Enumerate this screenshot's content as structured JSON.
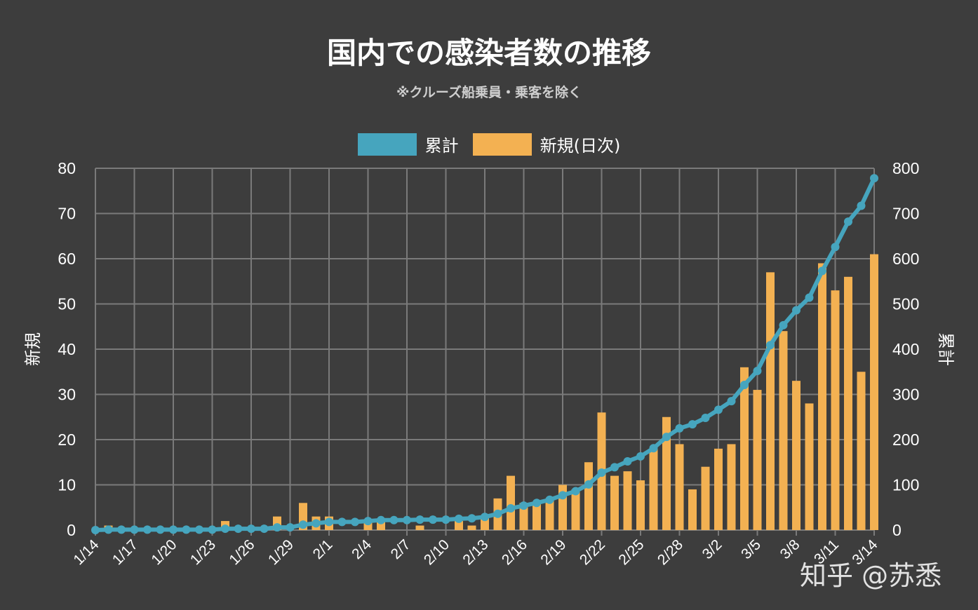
{
  "chart_data": {
    "type": "bar+line",
    "title": "国内での感染者数の推移",
    "subtitle": "※クルーズ船乗員・乗客を除く",
    "legend": {
      "placement": "top",
      "entries": [
        "累計",
        "新規(日次)"
      ]
    },
    "left_axis": {
      "label": "新規",
      "ylim": [
        0,
        80
      ],
      "ticks": [
        0,
        10,
        20,
        30,
        40,
        50,
        60,
        70,
        80
      ]
    },
    "right_axis": {
      "label": "累計",
      "ylim": [
        0,
        800
      ],
      "ticks": [
        0,
        100,
        200,
        300,
        400,
        500,
        600,
        700,
        800
      ]
    },
    "grid": true,
    "x_tick_labels": [
      "1/14",
      "1/17",
      "1/20",
      "1/23",
      "1/26",
      "1/29",
      "2/1",
      "2/4",
      "2/7",
      "2/10",
      "2/13",
      "2/16",
      "2/19",
      "2/22",
      "2/25",
      "2/28",
      "3/2",
      "3/5",
      "3/8",
      "3/11",
      "3/14"
    ],
    "x": [
      "1/14",
      "1/15",
      "1/16",
      "1/17",
      "1/18",
      "1/19",
      "1/20",
      "1/21",
      "1/22",
      "1/23",
      "1/24",
      "1/25",
      "1/26",
      "1/27",
      "1/28",
      "1/29",
      "1/30",
      "1/31",
      "2/1",
      "2/2",
      "2/3",
      "2/4",
      "2/5",
      "2/6",
      "2/7",
      "2/8",
      "2/9",
      "2/10",
      "2/11",
      "2/12",
      "2/13",
      "2/14",
      "2/15",
      "2/16",
      "2/17",
      "2/18",
      "2/19",
      "2/20",
      "2/21",
      "2/22",
      "2/23",
      "2/24",
      "2/25",
      "2/26",
      "2/27",
      "2/28",
      "2/29",
      "3/1",
      "3/2",
      "3/3",
      "3/4",
      "3/5",
      "3/6",
      "3/7",
      "3/8",
      "3/9",
      "3/10",
      "3/11",
      "3/12",
      "3/13",
      "3/14"
    ],
    "series": [
      {
        "name": "累計",
        "type": "line",
        "axis": "right",
        "color": "#46a5be",
        "values": [
          0,
          1,
          1,
          1,
          1,
          1,
          1,
          1,
          1,
          1,
          3,
          3,
          3,
          3,
          6,
          6,
          12,
          15,
          18,
          18,
          18,
          20,
          22,
          22,
          22,
          23,
          23,
          23,
          25,
          26,
          29,
          36,
          48,
          54,
          60,
          67,
          77,
          86,
          101,
          127,
          139,
          152,
          163,
          181,
          206,
          225,
          234,
          248,
          266,
          285,
          321,
          352,
          409,
          453,
          486,
          514,
          573,
          626,
          682,
          717,
          778
        ]
      },
      {
        "name": "新規(日次)",
        "type": "bar",
        "axis": "left",
        "color": "#f3b152",
        "values": [
          0,
          1,
          0,
          0,
          0,
          0,
          0,
          0,
          0,
          0,
          2,
          0,
          0,
          0,
          3,
          0,
          6,
          3,
          3,
          0,
          0,
          2,
          2,
          0,
          0,
          1,
          0,
          0,
          2,
          1,
          3,
          7,
          12,
          6,
          6,
          7,
          10,
          9,
          15,
          26,
          12,
          13,
          11,
          18,
          25,
          19,
          9,
          14,
          18,
          19,
          36,
          31,
          57,
          44,
          33,
          28,
          59,
          53,
          56,
          35,
          61
        ]
      }
    ]
  },
  "colors": {
    "background": "#3d3d3d",
    "grid": "#7a7a7a",
    "cumulative": "#46a5be",
    "daily": "#f3b152"
  },
  "watermark": "知乎 @苏悉"
}
